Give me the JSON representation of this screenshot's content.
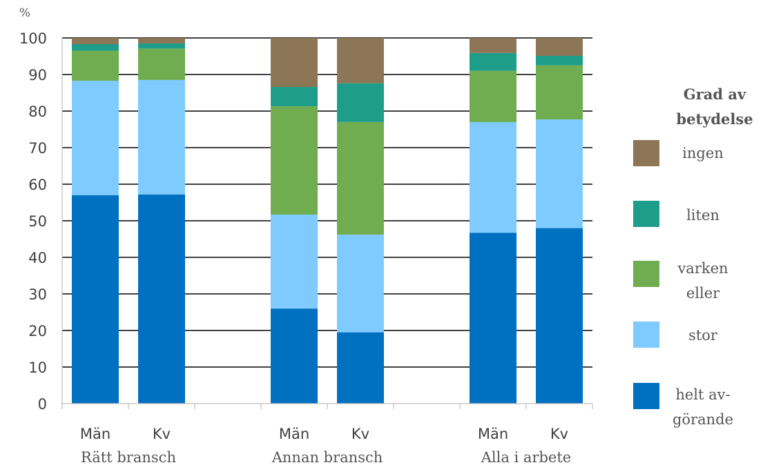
{
  "chart_data": {
    "type": "bar",
    "stacked": true,
    "y_unit": "%",
    "ylim": [
      0,
      100
    ],
    "yticks": [
      0,
      10,
      20,
      30,
      40,
      50,
      60,
      70,
      80,
      90,
      100
    ],
    "grid": true,
    "groups": [
      {
        "label": "Rätt bransch",
        "categories": [
          "Män",
          "Kv"
        ]
      },
      {
        "label": "Annan bransch",
        "categories": [
          "Män",
          "Kv"
        ]
      },
      {
        "label": "Alla i arbete",
        "categories": [
          "Män",
          "Kv"
        ]
      }
    ],
    "series": [
      {
        "name": "helt av-görande",
        "legend_lines": [
          "helt av-",
          "görande"
        ],
        "color": "#0070C0",
        "values": [
          57,
          57.2,
          26,
          19.5,
          46.7,
          48
        ]
      },
      {
        "name": "stor",
        "legend_lines": [
          "stor"
        ],
        "color": "#7FCBFF",
        "values": [
          31.3,
          31.3,
          25.7,
          26.7,
          30.3,
          29.7
        ]
      },
      {
        "name": "varken eller",
        "legend_lines": [
          "varken",
          "eller"
        ],
        "color": "#70AD50",
        "values": [
          8.2,
          8.6,
          29.6,
          30.8,
          14,
          14.8
        ]
      },
      {
        "name": "liten",
        "legend_lines": [
          "liten"
        ],
        "color": "#1E9E8A",
        "values": [
          1.8,
          1.4,
          5.3,
          10.6,
          4.9,
          2.6
        ]
      },
      {
        "name": "ingen",
        "legend_lines": [
          "ingen"
        ],
        "color": "#8C7656",
        "values": [
          1.7,
          1.5,
          13.4,
          12.4,
          4.1,
          4.9
        ]
      }
    ],
    "legend": {
      "title_lines": [
        "Grad av",
        "betydelse"
      ],
      "placement": "right",
      "order": [
        "ingen",
        "liten",
        "varken eller",
        "stor",
        "helt av-görande"
      ]
    }
  }
}
